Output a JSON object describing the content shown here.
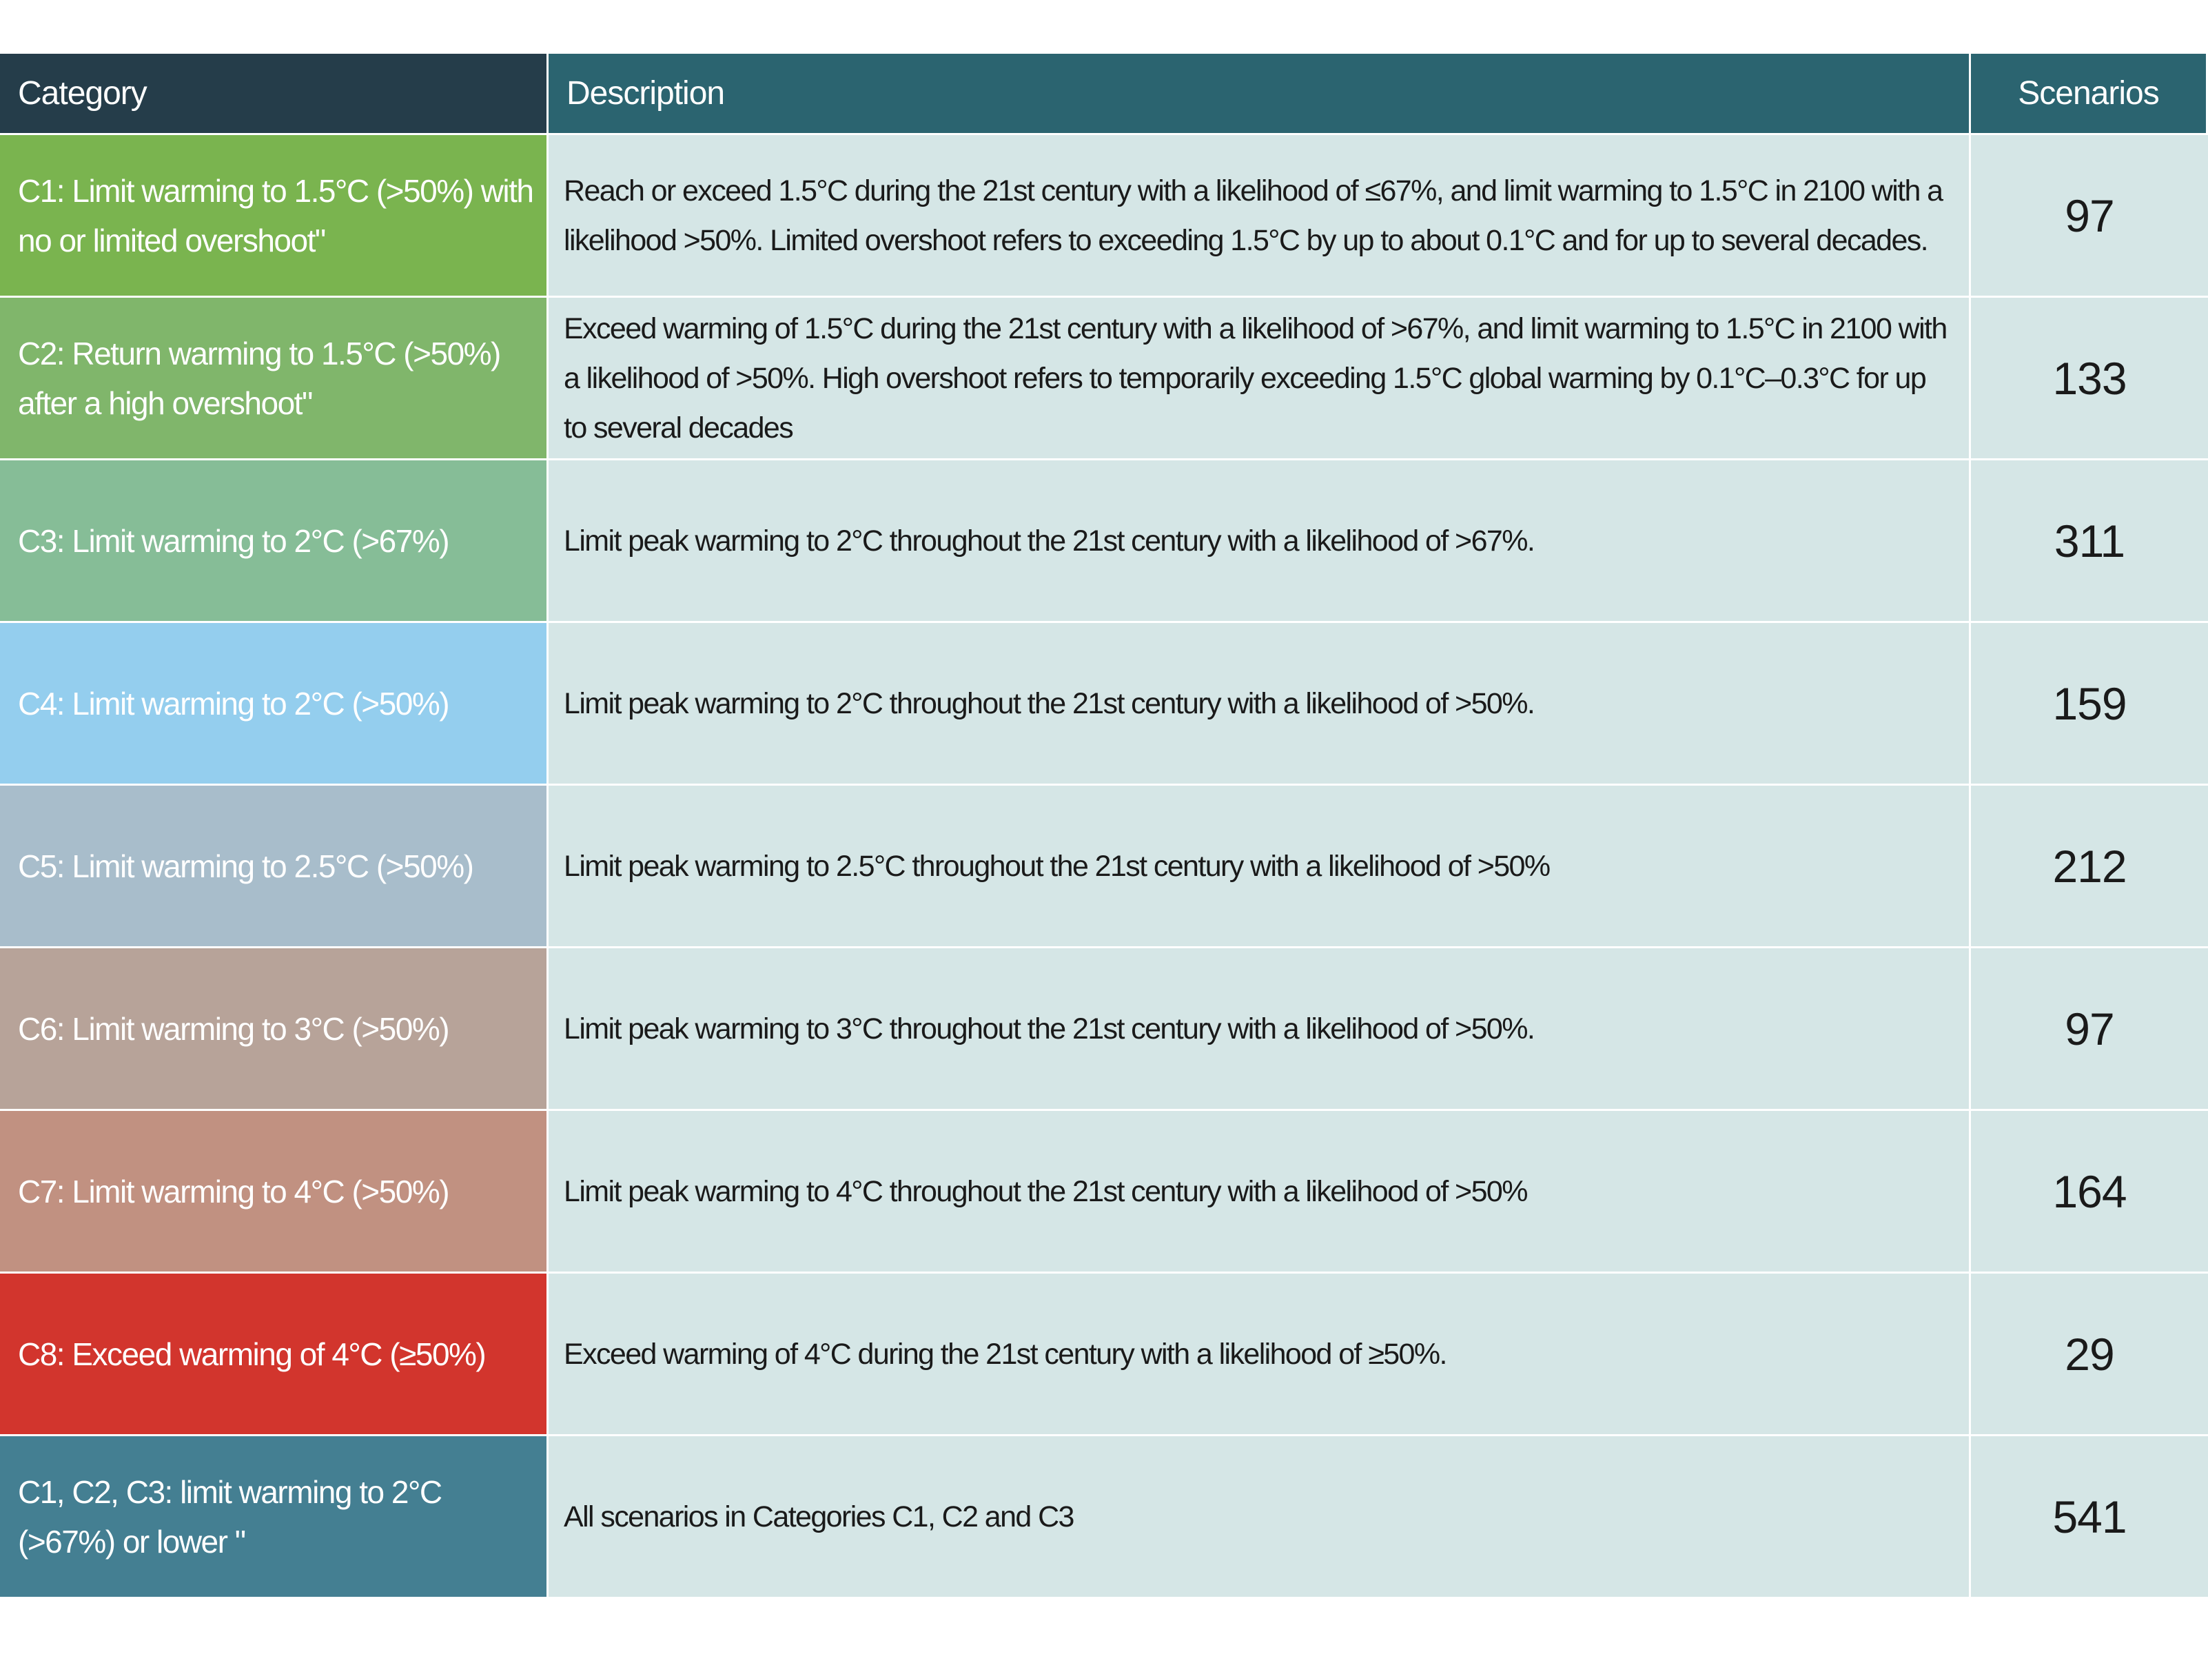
{
  "header": {
    "category": "Category",
    "description": "Description",
    "scenarios": "Scenarios"
  },
  "rows": [
    {
      "category": "C1: Limit warming to 1.5°C (>50%) with no or limited overshoot\"",
      "description": "Reach or exceed 1.5°C during the 21st century with a likelihood of ≤67%, and limit warming to 1.5°C in 2100 with a likelihood >50%. Limited overshoot refers to exceeding 1.5°C by up to about 0.1°C and for up to several decades.",
      "scenarios": "97",
      "color": "#7ab44f"
    },
    {
      "category": "C2: Return warming to 1.5°C (>50%) after a high overshoot\"",
      "description": "Exceed warming of 1.5°C during the 21st century with a likelihood of >67%, and limit warming to 1.5°C in 2100 with a likelihood of >50%. High overshoot refers to temporarily exceeding 1.5°C global warming by 0.1°C–0.3°C for up to several decades",
      "scenarios": "133",
      "color": "#80b66b"
    },
    {
      "category": "C3: Limit warming to 2°C (>67%)",
      "description": "Limit peak warming to 2°C throughout the 21st century with a likelihood of >67%.",
      "scenarios": "311",
      "color": "#86bd97"
    },
    {
      "category": "C4: Limit warming to 2°C (>50%)",
      "description": "Limit peak warming to 2°C throughout the 21st century with a likelihood of >50%.",
      "scenarios": "159",
      "color": "#94ceee"
    },
    {
      "category": "C5: Limit warming to 2.5°C (>50%)",
      "description": "Limit peak warming to 2.5°C throughout the 21st century with a likelihood of >50%",
      "scenarios": "212",
      "color": "#a8bdcb"
    },
    {
      "category": "C6: Limit warming to 3°C (>50%)",
      "description": "Limit peak warming to 3°C throughout the 21st century with a likelihood of >50%.",
      "scenarios": "97",
      "color": "#b7a399"
    },
    {
      "category": "C7: Limit warming to 4°C (>50%)",
      "description": "Limit peak warming to 4°C throughout the 21st century with a likelihood of >50%",
      "scenarios": "164",
      "color": "#c19181"
    },
    {
      "category": "C8: Exceed warming of 4°C (≥50%)",
      "description": "Exceed warming of 4°C during the 21st century with a likelihood of ≥50%.",
      "scenarios": "29",
      "color": "#d2352d"
    },
    {
      "category": "C1, C2, C3: limit warming to 2°C (>67%) or lower \"",
      "description": "All scenarios in Categories C1, C2 and C3",
      "scenarios": "541",
      "color": "#447f92"
    }
  ]
}
